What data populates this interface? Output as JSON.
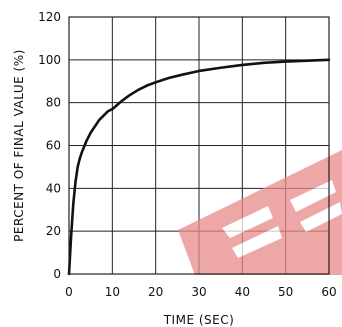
{
  "chart_data": {
    "type": "line",
    "title": "",
    "xlabel": "TIME (SEC)",
    "ylabel": "PERCENT OF FINAL VALUE (%)",
    "xlim": [
      0,
      60
    ],
    "ylim": [
      0,
      120
    ],
    "xticks": [
      0,
      10,
      20,
      30,
      40,
      50,
      60
    ],
    "yticks": [
      0,
      20,
      40,
      60,
      80,
      100,
      120
    ],
    "xtick_labels": [
      "0",
      "10",
      "20",
      "30",
      "40",
      "50",
      "60"
    ],
    "ytick_labels": [
      "0",
      "20",
      "40",
      "60",
      "80",
      "100",
      "120"
    ],
    "grid": true,
    "legend": "none",
    "colors": {
      "line": "#111111",
      "grid": "#222222",
      "watermark": "#e88a8a"
    },
    "series": [
      {
        "x": [
          0,
          0.5,
          1,
          1.5,
          2,
          2.5,
          3,
          4,
          5,
          6,
          7,
          8,
          9,
          10,
          12,
          14,
          16,
          18,
          20,
          23,
          26,
          30,
          35,
          40,
          45,
          50,
          55,
          60
        ],
        "values": [
          0,
          18,
          33,
          43,
          50,
          54,
          57,
          62,
          66,
          69,
          72,
          74,
          76,
          77,
          80.5,
          83.5,
          86,
          88,
          89.5,
          91.5,
          93,
          94.8,
          96.3,
          97.6,
          98.6,
          99.2,
          99.6,
          100
        ]
      }
    ]
  },
  "watermark": {
    "icon": "logo-watermark"
  }
}
